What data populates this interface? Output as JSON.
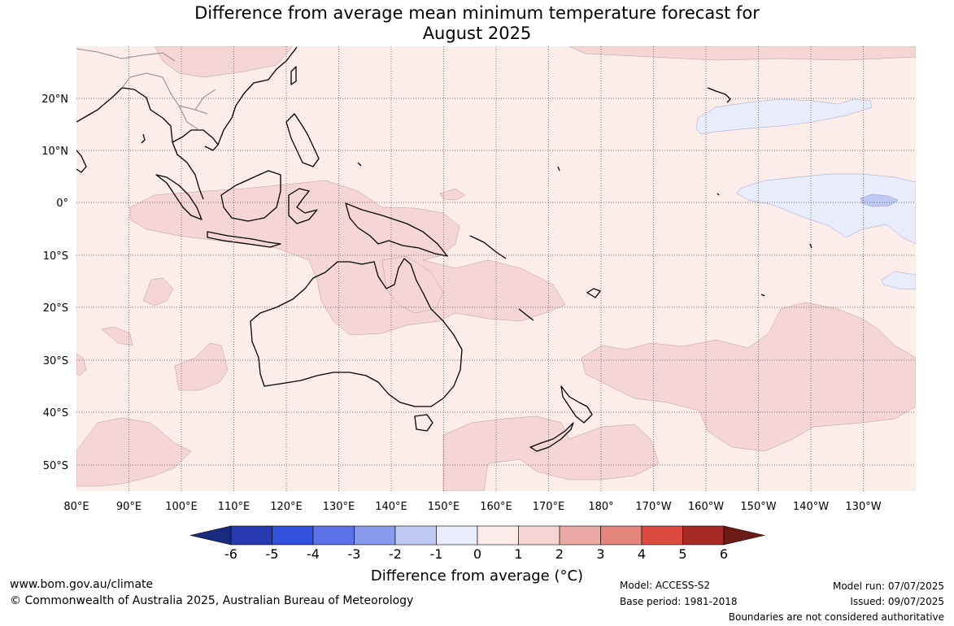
{
  "title_line1": "Difference from average mean minimum temperature forecast for",
  "title_line2": "August 2025",
  "lat_labels": [
    "20°N",
    "10°N",
    "0°",
    "10°S",
    "20°S",
    "30°S",
    "40°S",
    "50°S"
  ],
  "lon_labels": [
    "80°E",
    "90°E",
    "100°E",
    "110°E",
    "120°E",
    "130°E",
    "140°E",
    "150°E",
    "160°E",
    "170°E",
    "180°",
    "170°W",
    "160°W",
    "150°W",
    "140°W",
    "130°W"
  ],
  "colorbar": {
    "ticks": [
      "-6",
      "-5",
      "-4",
      "-3",
      "-2",
      "-1",
      "0",
      "1",
      "2",
      "3",
      "4",
      "5",
      "6"
    ],
    "colors": [
      "#273ab0",
      "#3251de",
      "#5b73e6",
      "#8799ea",
      "#c0c9f3",
      "#e8ecfc",
      "#fcecea",
      "#f6d6d4",
      "#eba9a4",
      "#e5867d",
      "#dc4a3f",
      "#a82a24"
    ],
    "low_color": "#1a2a7e",
    "high_color": "#6e1a17",
    "label": "Difference from average (°C)"
  },
  "colors": {
    "background_fill": "#fcecea",
    "warm_fill": "#f6d6d4",
    "cool_fill": "#e8ecfc",
    "cooler_fill": "#c0c9f3",
    "coast": "#000000",
    "border": "#8a8a8a"
  },
  "footer": {
    "website": "www.bom.gov.au/climate",
    "copyright": "© Commonwealth of Australia 2025, Australian Bureau of Meteorology",
    "model": "Model: ACCESS-S2",
    "base_period": "Base period: 1981-2018",
    "model_run": "Model run: 07/07/2025",
    "issued": "Issued: 09/07/2025",
    "disclaimer": "Boundaries are not considered authoritative"
  }
}
